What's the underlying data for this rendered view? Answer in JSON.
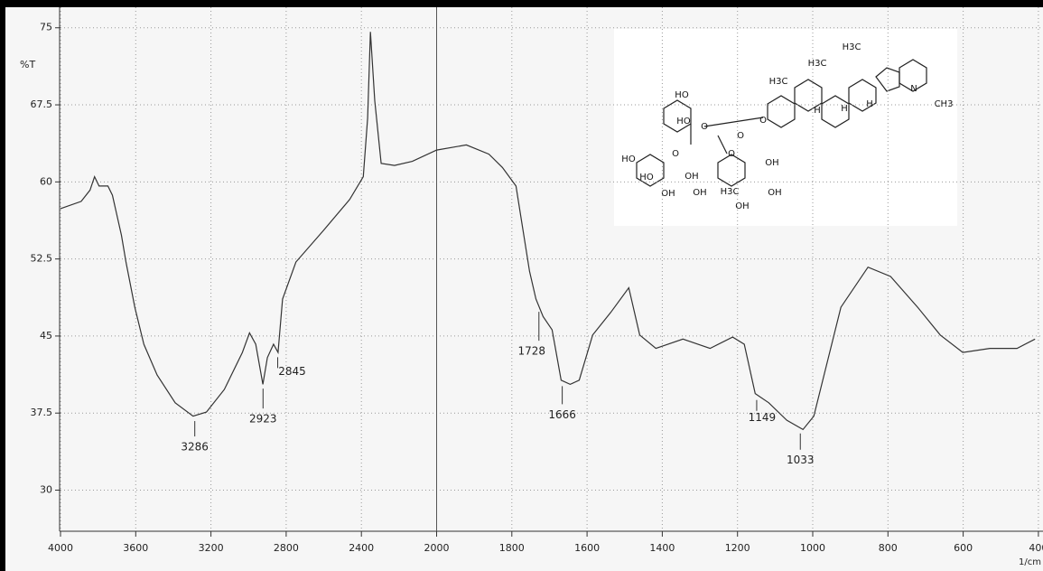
{
  "chart_data": {
    "type": "line",
    "y_label": "%T",
    "x_label": "1/cm",
    "xlim": [
      4000,
      400
    ],
    "ylim": [
      26,
      77
    ],
    "xticks": [
      4000,
      3600,
      3200,
      2800,
      2400,
      2000,
      1800,
      1600,
      1400,
      1200,
      1000,
      800,
      600,
      400
    ],
    "yticks": [
      30,
      37.5,
      45,
      52.5,
      60,
      67.5,
      75
    ],
    "grid": true,
    "series": [
      {
        "name": "%T",
        "color": "#333333",
        "x": [
          4000,
          3890,
          3843,
          3819,
          3795,
          3748,
          3724,
          3676,
          3652,
          3605,
          3557,
          3486,
          3390,
          3295,
          3224,
          3129,
          3033,
          2995,
          2962,
          2924,
          2900,
          2867,
          2843,
          2819,
          2748,
          2605,
          2462,
          2390,
          2367,
          2352,
          2329,
          2295,
          2224,
          2129,
          2000,
          1921,
          1861,
          1825,
          1789,
          1753,
          1736,
          1717,
          1693,
          1669,
          1645,
          1621,
          1585,
          1537,
          1489,
          1460,
          1417,
          1345,
          1273,
          1213,
          1182,
          1153,
          1117,
          1069,
          1026,
          997,
          961,
          925,
          853,
          793,
          721,
          661,
          601,
          529,
          457,
          409
        ],
        "values": [
          57.4,
          58.1,
          59.2,
          60.5,
          59.6,
          59.6,
          58.7,
          54.8,
          52.2,
          47.8,
          44.2,
          41.2,
          38.5,
          37.2,
          37.6,
          39.8,
          43.4,
          45.3,
          44.2,
          40.3,
          42.9,
          44.2,
          43.4,
          48.6,
          52.2,
          55.2,
          58.3,
          60.5,
          66.2,
          74.6,
          67.9,
          61.8,
          61.6,
          62.0,
          63.1,
          63.6,
          62.7,
          61.4,
          59.6,
          51.3,
          48.6,
          46.9,
          45.6,
          40.7,
          40.3,
          40.7,
          45.1,
          47.3,
          49.7,
          45.1,
          43.8,
          44.7,
          43.8,
          44.9,
          44.2,
          39.4,
          38.5,
          36.8,
          35.9,
          37.2,
          42.5,
          47.8,
          51.7,
          50.8,
          47.8,
          45.1,
          43.4,
          43.8,
          43.8,
          44.7
        ]
      }
    ],
    "peak_labels": [
      3286,
      2923,
      2845,
      1728,
      1666,
      1149,
      1033
    ]
  },
  "structure_labels": [
    "HO",
    "HO",
    "O",
    "O",
    "O",
    "H3C",
    "H3C",
    "H3C",
    "H",
    "H",
    "H",
    "N",
    "CH3",
    "HO",
    "HO",
    "OH",
    "OH",
    "H3C",
    "OH",
    "OH",
    "OH",
    "OH",
    "O",
    "O"
  ]
}
